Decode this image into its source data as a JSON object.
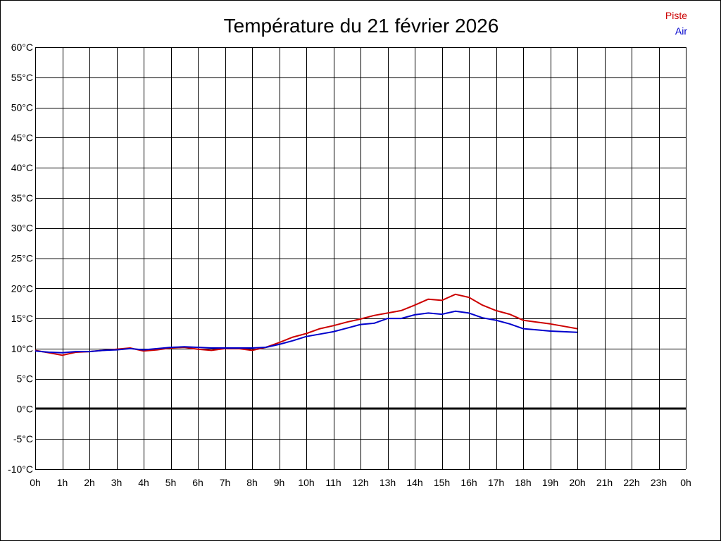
{
  "chart_data": {
    "type": "line",
    "title": "Température du 21 février 2026",
    "xlabel": "",
    "ylabel": "",
    "x_ticks": [
      "0h",
      "1h",
      "2h",
      "3h",
      "4h",
      "5h",
      "6h",
      "7h",
      "8h",
      "9h",
      "10h",
      "11h",
      "12h",
      "13h",
      "14h",
      "15h",
      "16h",
      "17h",
      "18h",
      "19h",
      "20h",
      "21h",
      "22h",
      "23h",
      "0h"
    ],
    "y_ticks": [
      "60°C",
      "55°C",
      "50°C",
      "45°C",
      "40°C",
      "35°C",
      "30°C",
      "25°C",
      "20°C",
      "15°C",
      "10°C",
      "5°C",
      "0°C",
      "-5°C",
      "-10°C"
    ],
    "xlim": [
      0,
      24
    ],
    "ylim": [
      -10,
      60
    ],
    "grid": true,
    "legend_position": "top-right",
    "zero_line": 0,
    "series": [
      {
        "name": "Piste",
        "color": "#cc0000",
        "x": [
          0,
          0.5,
          1,
          1.5,
          2,
          2.5,
          3,
          3.5,
          4,
          4.5,
          5,
          5.5,
          6,
          6.5,
          7,
          7.5,
          8,
          8.5,
          9,
          9.5,
          10,
          10.5,
          11,
          11.5,
          12,
          12.5,
          13,
          13.5,
          14,
          14.5,
          15,
          15.5,
          16,
          16.5,
          17,
          17.5,
          18,
          18.5,
          19,
          19.5,
          20
        ],
        "values": [
          9.7,
          9.3,
          8.9,
          9.4,
          9.5,
          9.7,
          9.9,
          10.1,
          9.6,
          9.8,
          10.1,
          10.2,
          9.9,
          9.7,
          10.0,
          10.0,
          9.7,
          10.2,
          11.0,
          11.9,
          12.5,
          13.3,
          13.8,
          14.4,
          14.9,
          15.5,
          15.9,
          16.3,
          17.2,
          18.2,
          18.0,
          19.0,
          18.5,
          17.2,
          16.3,
          15.7,
          14.7,
          14.4,
          14.1,
          13.7,
          13.3
        ]
      },
      {
        "name": "Air",
        "color": "#0000cc",
        "x": [
          0,
          0.5,
          1,
          1.5,
          2,
          2.5,
          3,
          3.5,
          4,
          4.5,
          5,
          5.5,
          6,
          6.5,
          7,
          7.5,
          8,
          8.5,
          9,
          9.5,
          10,
          10.5,
          11,
          11.5,
          12,
          12.5,
          13,
          13.5,
          14,
          14.5,
          15,
          15.5,
          16,
          16.5,
          17,
          17.5,
          18,
          18.5,
          19,
          19.5,
          20
        ],
        "values": [
          9.6,
          9.4,
          9.3,
          9.5,
          9.5,
          9.7,
          9.8,
          10.0,
          9.8,
          10.0,
          10.2,
          10.3,
          10.2,
          10.1,
          10.1,
          10.1,
          10.1,
          10.2,
          10.7,
          11.3,
          12.0,
          12.4,
          12.8,
          13.4,
          14.0,
          14.2,
          15.0,
          15.0,
          15.6,
          15.9,
          15.7,
          16.2,
          15.9,
          15.1,
          14.7,
          14.1,
          13.3,
          13.1,
          12.9,
          12.8,
          12.7
        ]
      }
    ]
  }
}
